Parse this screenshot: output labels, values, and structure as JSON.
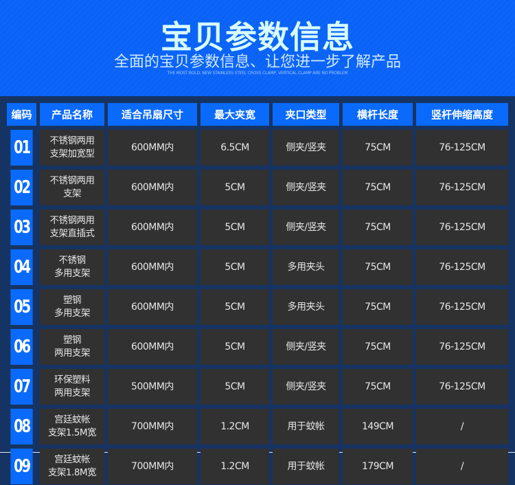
{
  "header": {
    "title": "宝贝参数信息",
    "subtitle": "全面的宝贝参数信息、让您进一步了解产品",
    "english": "THE MOST BOLD, NEW STAINLESS STEEL CROSS CLAMP, VERTICAL CLAMP ARE NO PROBLEM"
  },
  "table": {
    "columns": [
      "编码",
      "产品名称",
      "适合吊扇尺寸",
      "最大夹宽",
      "夹口类型",
      "横杆长度",
      "竖杆伸缩高度"
    ],
    "rows": [
      [
        "01",
        "不锈钢两用\n支架加宽型",
        "600MM内",
        "6.5CM",
        "侧夹/竖夹",
        "75CM",
        "76-125CM"
      ],
      [
        "02",
        "不锈钢两用\n支架",
        "600MM内",
        "5CM",
        "侧夹/竖夹",
        "75CM",
        "76-125CM"
      ],
      [
        "03",
        "不锈钢两用\n支架直插式",
        "600MM内",
        "5CM",
        "侧夹/竖夹",
        "75CM",
        "76-125CM"
      ],
      [
        "04",
        "不锈钢\n多用支架",
        "600MM内",
        "5CM",
        "多用夹头",
        "75CM",
        "76-125CM"
      ],
      [
        "05",
        "塑钢\n多用支架",
        "600MM内",
        "5CM",
        "多用夹头",
        "75CM",
        "76-125CM"
      ],
      [
        "06",
        "塑钢\n两用支架",
        "600MM内",
        "5CM",
        "侧夹/竖夹",
        "75CM",
        "76-125CM"
      ],
      [
        "07",
        "环保塑料\n两用支架",
        "500MM内",
        "5CM",
        "侧夹/竖夹",
        "75CM",
        "76-125CM"
      ],
      [
        "08",
        "宫廷蚊帐\n支架1.5M宽",
        "700MM内",
        "1.2CM",
        "用于蚊帐",
        "149CM",
        "/"
      ],
      [
        "09",
        "宫廷蚊帐\n支架1.8M宽",
        "700MM内",
        "1.2CM",
        "用于蚊帐",
        "179CM",
        "/"
      ]
    ]
  },
  "colors": {
    "header_bg": "#0b62f6",
    "table_bg": "#163463",
    "cell_bg": "#313131",
    "accent": "#0a6afc"
  }
}
